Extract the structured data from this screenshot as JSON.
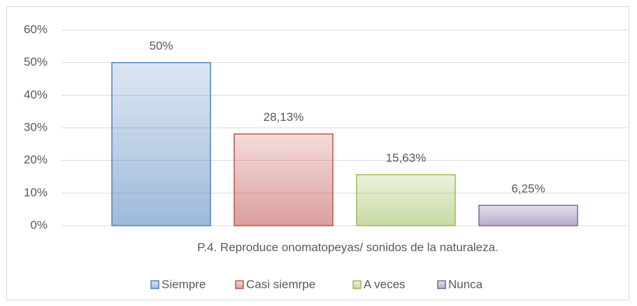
{
  "chart_data": {
    "type": "bar",
    "categories": [
      "P.4. Reproduce onomatopeyas/ sonidos de la naturaleza."
    ],
    "series": [
      {
        "name": "Siempre",
        "color": "#4f81bd",
        "values": [
          50
        ],
        "value_labels": [
          "50%"
        ]
      },
      {
        "name": "Casi siemrpe",
        "color": "#c0504d",
        "values": [
          28.13
        ],
        "value_labels": [
          "28,13%"
        ]
      },
      {
        "name": "A veces",
        "color": "#9bbb59",
        "values": [
          15.63
        ],
        "value_labels": [
          "15,63%"
        ]
      },
      {
        "name": "Nunca",
        "color": "#8064a2",
        "values": [
          6.25
        ],
        "value_labels": [
          "6,25%"
        ]
      }
    ],
    "ylim": [
      0,
      60
    ],
    "yticks": [
      {
        "value": 0,
        "label": "0%"
      },
      {
        "value": 10,
        "label": "10%"
      },
      {
        "value": 20,
        "label": "20%"
      },
      {
        "value": 30,
        "label": "30%"
      },
      {
        "value": 40,
        "label": "40%"
      },
      {
        "value": 50,
        "label": "50%"
      },
      {
        "value": 60,
        "label": "60%"
      }
    ],
    "grid": true,
    "legend": "bottom"
  }
}
